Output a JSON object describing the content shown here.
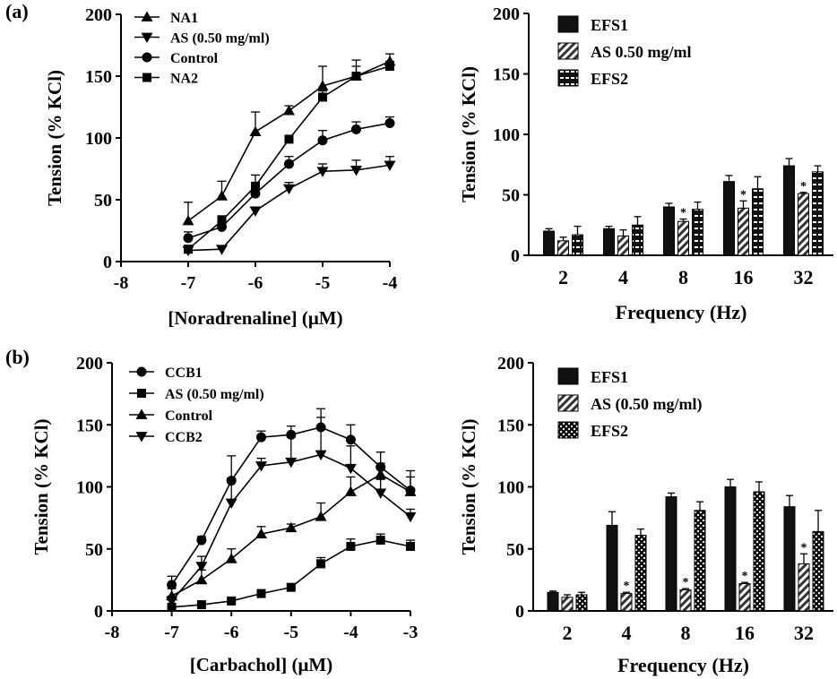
{
  "panel_labels": {
    "a": "(a)",
    "b": "(b)"
  },
  "chart_data": [
    {
      "id": "a_left",
      "type": "line",
      "xlabel": "[Noradrenaline] (μM)",
      "ylabel": "Tension (% KCl)",
      "xlim": [
        -8,
        -4
      ],
      "ylim": [
        0,
        200
      ],
      "xticks": [
        -8,
        -7,
        -6,
        -5,
        -4
      ],
      "yticks": [
        0,
        50,
        100,
        150,
        200
      ],
      "xtick_labels": [
        "-8",
        "-7",
        "-6",
        "-5",
        "-4"
      ],
      "ytick_labels": [
        "0",
        "50",
        "100",
        "150",
        "200"
      ],
      "legend_position": "top-left",
      "series": [
        {
          "name": "NA1",
          "marker": "triangle-up",
          "x": [
            -7,
            -6.5,
            -6,
            -5.5,
            -5,
            -4.5,
            -4
          ],
          "y": [
            33,
            53,
            105,
            122,
            142,
            150,
            162
          ],
          "err": [
            15,
            12,
            16,
            4,
            16,
            13,
            6
          ]
        },
        {
          "name": "AS (0.50 mg/ml)",
          "marker": "triangle-down",
          "x": [
            -7,
            -6.5,
            -6,
            -5.5,
            -5,
            -4.5,
            -4
          ],
          "y": [
            9,
            10,
            41,
            59,
            73,
            74,
            78
          ],
          "err": [
            2,
            2,
            3,
            5,
            6,
            8,
            7
          ]
        },
        {
          "name": "Control",
          "marker": "circle",
          "x": [
            -7,
            -6.5,
            -6,
            -5.5,
            -5,
            -4.5,
            -4
          ],
          "y": [
            19,
            28,
            55,
            79,
            98,
            107,
            112
          ],
          "err": [
            5,
            4,
            6,
            6,
            8,
            6,
            5
          ]
        },
        {
          "name": "NA2",
          "marker": "square",
          "x": [
            -7,
            -6.5,
            -6,
            -5.5,
            -5,
            -4.5,
            -4
          ],
          "y": [
            10,
            33,
            61,
            99,
            133,
            150,
            158
          ],
          "err": [
            3,
            4,
            9,
            3,
            5,
            8,
            4
          ]
        }
      ]
    },
    {
      "id": "a_right",
      "type": "bar",
      "xlabel": "Frequency (Hz)",
      "ylabel": "Tension (% KCl)",
      "ylim": [
        0,
        200
      ],
      "yticks": [
        0,
        50,
        100,
        150,
        200
      ],
      "ytick_labels": [
        "0",
        "50",
        "100",
        "150",
        "200"
      ],
      "categories": [
        "2",
        "4",
        "8",
        "16",
        "32"
      ],
      "legend_position": "top-left",
      "significance_mark": "*",
      "series": [
        {
          "name": "EFS1",
          "pattern": "solid",
          "values": [
            20,
            22,
            40,
            61,
            74
          ],
          "err": [
            2,
            2,
            3,
            5,
            6
          ],
          "significant": [
            false,
            false,
            false,
            false,
            false
          ]
        },
        {
          "name": "AS 0.50 mg/ml",
          "pattern": "hatch",
          "values": [
            12,
            16,
            28,
            39,
            51
          ],
          "err": [
            3,
            5,
            2,
            6,
            1
          ],
          "significant": [
            false,
            false,
            true,
            true,
            true
          ]
        },
        {
          "name": "EFS2",
          "pattern": "dash",
          "values": [
            17,
            25,
            38,
            55,
            69
          ],
          "err": [
            7,
            7,
            6,
            10,
            5
          ],
          "significant": [
            false,
            false,
            false,
            false,
            false
          ]
        }
      ]
    },
    {
      "id": "b_left",
      "type": "line",
      "xlabel": "[Carbachol] (μM)",
      "ylabel": "Tension (% KCl)",
      "xlim": [
        -8,
        -3
      ],
      "ylim": [
        0,
        200
      ],
      "xticks": [
        -8,
        -7,
        -6,
        -5,
        -4,
        -3
      ],
      "yticks": [
        0,
        50,
        100,
        150,
        200
      ],
      "xtick_labels": [
        "-8",
        "-7",
        "-6",
        "-5",
        "-4",
        "-3"
      ],
      "ytick_labels": [
        "0",
        "50",
        "100",
        "150",
        "200"
      ],
      "legend_position": "top-left",
      "series": [
        {
          "name": "CCB1",
          "marker": "circle",
          "x": [
            -7,
            -6.5,
            -6,
            -5.5,
            -5,
            -4.5,
            -4,
            -3.5,
            -3
          ],
          "y": [
            21,
            57,
            105,
            140,
            142,
            148,
            138,
            116,
            97
          ],
          "err": [
            7,
            3,
            20,
            5,
            7,
            15,
            12,
            3,
            16
          ]
        },
        {
          "name": "AS (0.50 mg/ml)",
          "marker": "square",
          "x": [
            -7,
            -6.5,
            -6,
            -5.5,
            -5,
            -4.5,
            -4,
            -3.5,
            -3
          ],
          "y": [
            3,
            5,
            8,
            14,
            19,
            38,
            52,
            57,
            52
          ],
          "err": [
            1,
            1,
            1,
            2,
            2,
            5,
            6,
            5,
            5
          ]
        },
        {
          "name": "Control",
          "marker": "triangle-up",
          "x": [
            -7,
            -6.5,
            -6,
            -5.5,
            -5,
            -4.5,
            -4,
            -3.5,
            -3
          ],
          "y": [
            12,
            25,
            42,
            62,
            67,
            76,
            96,
            110,
            96
          ],
          "err": [
            6,
            8,
            8,
            6,
            3,
            11,
            12,
            18,
            12
          ]
        },
        {
          "name": "CCB2",
          "marker": "triangle-down",
          "x": [
            -7,
            -6.5,
            -6,
            -5.5,
            -5,
            -4.5,
            -4,
            -3.5,
            -3
          ],
          "y": [
            8,
            36,
            87,
            117,
            120,
            126,
            115,
            95,
            76
          ],
          "err": [
            4,
            8,
            20,
            6,
            20,
            30,
            18,
            11,
            6
          ]
        }
      ]
    },
    {
      "id": "b_right",
      "type": "bar",
      "xlabel": "Frequency (Hz)",
      "ylabel": "Tension (% KCl)",
      "ylim": [
        0,
        200
      ],
      "yticks": [
        0,
        50,
        100,
        150,
        200
      ],
      "ytick_labels": [
        "0",
        "50",
        "100",
        "150",
        "200"
      ],
      "categories": [
        "2",
        "4",
        "8",
        "16",
        "32"
      ],
      "legend_position": "top-left",
      "significance_mark": "*",
      "series": [
        {
          "name": "EFS1",
          "pattern": "solid",
          "values": [
            15,
            69,
            92,
            100,
            84
          ],
          "err": [
            1,
            11,
            3,
            6,
            9
          ],
          "significant": [
            false,
            false,
            false,
            false,
            false
          ]
        },
        {
          "name": "AS (0.50 mg/ml)",
          "pattern": "hatch",
          "values": [
            11,
            14,
            17,
            22,
            38
          ],
          "err": [
            2,
            1,
            1,
            1,
            8
          ],
          "significant": [
            false,
            true,
            true,
            true,
            true
          ]
        },
        {
          "name": "EFS2",
          "pattern": "dots",
          "values": [
            13,
            61,
            81,
            96,
            64
          ],
          "err": [
            2,
            5,
            7,
            8,
            17
          ],
          "significant": [
            false,
            false,
            false,
            false,
            false
          ]
        }
      ]
    }
  ]
}
